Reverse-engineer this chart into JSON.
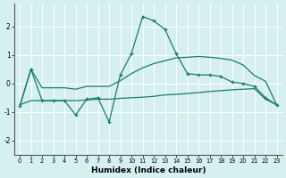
{
  "xlabel": "Humidex (Indice chaleur)",
  "background_color": "#d6f0f0",
  "grid_color": "#ffffff",
  "line_color": "#1a7a6e",
  "xlim": [
    -0.5,
    23.5
  ],
  "ylim": [
    -2.5,
    2.8
  ],
  "yticks": [
    -2,
    -1,
    0,
    1,
    2
  ],
  "xticks": [
    0,
    1,
    2,
    3,
    4,
    5,
    6,
    7,
    8,
    9,
    10,
    11,
    12,
    13,
    14,
    15,
    16,
    17,
    18,
    19,
    20,
    21,
    22,
    23
  ],
  "line1_x": [
    0,
    1,
    2,
    3,
    4,
    5,
    6,
    7,
    8,
    9,
    10,
    11,
    12,
    13,
    14,
    15,
    16,
    17,
    18,
    19,
    20,
    21,
    22,
    23
  ],
  "line1_y": [
    -0.8,
    0.5,
    -0.6,
    -0.6,
    -0.6,
    -1.1,
    -0.55,
    -0.5,
    -1.35,
    0.3,
    1.05,
    2.35,
    2.2,
    1.9,
    1.05,
    0.35,
    0.3,
    0.3,
    0.25,
    0.05,
    0.0,
    -0.1,
    -0.5,
    -0.75
  ],
  "line2_x": [
    0,
    1,
    2,
    3,
    4,
    5,
    6,
    7,
    8,
    9,
    10,
    11,
    12,
    13,
    14,
    15,
    16,
    17,
    18,
    19,
    20,
    21,
    22,
    23
  ],
  "line2_y": [
    -0.75,
    -0.6,
    -0.6,
    -0.6,
    -0.6,
    -0.6,
    -0.58,
    -0.55,
    -0.55,
    -0.52,
    -0.5,
    -0.48,
    -0.45,
    -0.4,
    -0.38,
    -0.35,
    -0.32,
    -0.28,
    -0.25,
    -0.22,
    -0.2,
    -0.18,
    -0.55,
    -0.75
  ],
  "line3_x": [
    0,
    1,
    2,
    3,
    4,
    5,
    6,
    7,
    8,
    9,
    10,
    11,
    12,
    13,
    14,
    15,
    16,
    17,
    18,
    19,
    20,
    21,
    22,
    23
  ],
  "line3_y": [
    -0.8,
    0.5,
    -0.15,
    -0.15,
    -0.15,
    -0.2,
    -0.1,
    -0.1,
    -0.1,
    0.1,
    0.35,
    0.55,
    0.7,
    0.8,
    0.9,
    0.92,
    0.95,
    0.92,
    0.88,
    0.82,
    0.65,
    0.28,
    0.08,
    -0.75
  ]
}
